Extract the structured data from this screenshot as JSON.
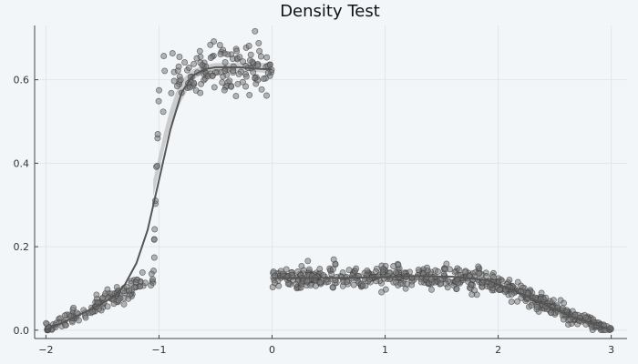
{
  "chart_data": {
    "type": "scatter",
    "title": "Density Test",
    "xlabel": "",
    "ylabel": "",
    "xlim": [
      -2.1,
      3.14
    ],
    "ylim": [
      -0.02,
      0.73
    ],
    "x_ticks": [
      -2,
      -1,
      0,
      1,
      2,
      3
    ],
    "x_tick_labels": [
      "−2",
      "−1",
      "0",
      "1",
      "2",
      "3"
    ],
    "y_ticks": [
      0.0,
      0.2,
      0.4,
      0.6
    ],
    "y_tick_labels": [
      "0.0",
      "0.2",
      "0.4",
      "0.6"
    ],
    "grid": true,
    "legend": "none",
    "colors": {
      "background": "#f2f6f9",
      "points_fill": "#7a7a7a",
      "points_stroke": "#3a3a3a",
      "line": "#555555",
      "band": "#9a9a9a",
      "axis": "#444444",
      "grid": "#e1e6ea"
    },
    "series": [
      {
        "kind": "points",
        "segment": "left",
        "x_range": [
          -2.0,
          0.0
        ],
        "trend_x": [
          -2.0,
          -1.8,
          -1.6,
          -1.4,
          -1.2,
          -1.05,
          -1.0,
          -0.95,
          -0.9,
          -0.8,
          -0.7,
          -0.6,
          -0.4,
          -0.2,
          0.0
        ],
        "trend_y": [
          0.0,
          0.025,
          0.05,
          0.08,
          0.105,
          0.125,
          0.6,
          0.6,
          0.605,
          0.615,
          0.62,
          0.625,
          0.63,
          0.63,
          0.63
        ],
        "spread": [
          0.006,
          0.01,
          0.01,
          0.012,
          0.012,
          0.012,
          0.03,
          0.03,
          0.03,
          0.03,
          0.03,
          0.03,
          0.03,
          0.03,
          0.03
        ],
        "count": 280
      },
      {
        "kind": "points",
        "segment": "right",
        "x_range": [
          0.0,
          3.0
        ],
        "trend_x": [
          0.0,
          0.5,
          1.0,
          1.5,
          1.9,
          2.2,
          2.5,
          2.8,
          3.0
        ],
        "trend_y": [
          0.125,
          0.125,
          0.125,
          0.125,
          0.12,
          0.09,
          0.05,
          0.02,
          0.0
        ],
        "spread": [
          0.012,
          0.014,
          0.014,
          0.014,
          0.012,
          0.01,
          0.01,
          0.008,
          0.004
        ],
        "count": 600
      },
      {
        "kind": "line",
        "x": [
          -2.0,
          -1.8,
          -1.6,
          -1.4,
          -1.3,
          -1.2,
          -1.1,
          -1.0,
          -0.9,
          -0.8,
          -0.7,
          -0.6,
          -0.5,
          -0.4,
          -0.3,
          -0.2,
          -0.1,
          0.0
        ],
        "y": [
          0.0,
          0.025,
          0.05,
          0.08,
          0.11,
          0.16,
          0.24,
          0.36,
          0.48,
          0.57,
          0.61,
          0.625,
          0.63,
          0.63,
          0.63,
          0.628,
          0.626,
          0.625
        ]
      },
      {
        "kind": "line",
        "x": [
          0.0,
          0.5,
          1.0,
          1.3,
          1.6,
          1.9,
          2.1,
          2.3,
          2.5,
          2.7,
          2.9,
          3.0
        ],
        "y": [
          0.125,
          0.125,
          0.127,
          0.13,
          0.128,
          0.12,
          0.1,
          0.075,
          0.05,
          0.027,
          0.01,
          0.0
        ]
      },
      {
        "kind": "band",
        "x": [
          -1.05,
          -1.0,
          -0.95,
          -0.9,
          -0.85,
          -0.8,
          -0.7,
          -0.6,
          -0.5,
          -0.4,
          -0.2,
          0.0
        ],
        "y_low": [
          0.32,
          0.38,
          0.44,
          0.49,
          0.52,
          0.55,
          0.6,
          0.615,
          0.62,
          0.62,
          0.62,
          0.615
        ],
        "y_high": [
          0.36,
          0.42,
          0.48,
          0.53,
          0.57,
          0.6,
          0.625,
          0.635,
          0.64,
          0.64,
          0.64,
          0.64
        ]
      }
    ]
  }
}
